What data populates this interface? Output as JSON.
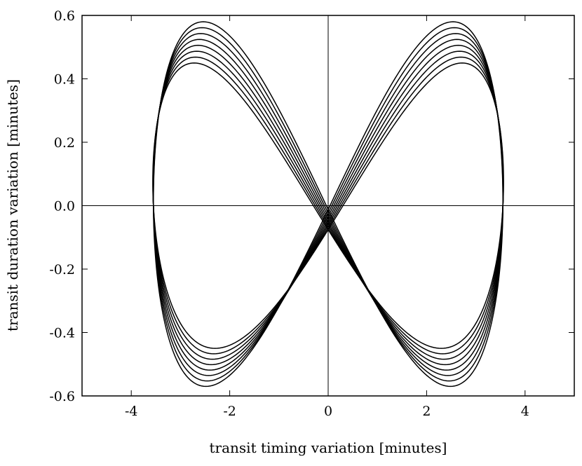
{
  "chart_data": {
    "type": "line",
    "title": "",
    "xlabel": "transit timing variation [minutes]",
    "ylabel": "transit duration variation [minutes]",
    "xlim": [
      -5,
      5
    ],
    "ylim": [
      -0.6,
      0.6
    ],
    "xticks": [
      -4,
      -2,
      0,
      2,
      4
    ],
    "xtick_labels": [
      "-4",
      "-2",
      "0",
      "2",
      "4"
    ],
    "yticks": [
      -0.6,
      -0.4,
      -0.2,
      0.0,
      0.2,
      0.4,
      0.6
    ],
    "ytick_labels": [
      "-0.6",
      "-0.4",
      "-0.2",
      "0.0",
      "0.2",
      "0.4",
      "0.6"
    ],
    "zero_lines": true,
    "grid": false,
    "legend": false,
    "line_color": "#000000",
    "curve": {
      "description_values": "figure-eight TTV vs TDV loops",
      "loop_count": 8,
      "ttv_amplitude": 3.55,
      "tdv_max_start": 0.45,
      "tdv_max_end": 0.58,
      "tdv_min_start": -0.45,
      "tdv_min_end": -0.57,
      "lobe_center_ttv_left": -2.0,
      "lobe_center_ttv_right": 2.0,
      "center_offset_start": 0.6,
      "center_offset_step": -0.075
    }
  }
}
